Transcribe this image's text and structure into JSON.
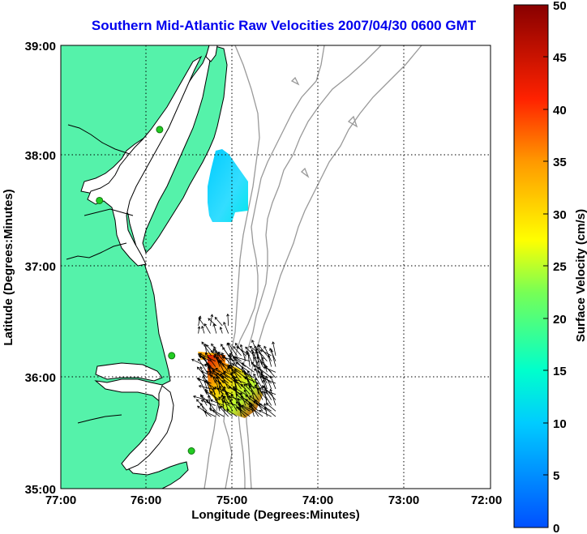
{
  "title": "Southern Mid-Atlantic Raw Velocities 2007/04/30 0600 GMT",
  "x_axis": {
    "label": "Longitude (Degrees:Minutes)",
    "ticks": [
      "77:00",
      "76:00",
      "75:00",
      "74:00",
      "73:00",
      "72:00"
    ]
  },
  "y_axis": {
    "label": "Latitude (Degrees:Minutes)",
    "ticks": [
      "39:00",
      "38:00",
      "37:00",
      "36:00",
      "35:00"
    ]
  },
  "colorbar": {
    "label": "Surface Velocity (cm/s)",
    "ticks": [
      "50",
      "45",
      "40",
      "35",
      "30",
      "25",
      "20",
      "15",
      "10",
      "5",
      "0"
    ],
    "min": 0,
    "max": 50
  },
  "colors": {
    "land": "#55f2aa",
    "coast": "#000000",
    "bathymetry": "#999999",
    "grid": "#000000",
    "title": "#0000ee",
    "station_marker": "#22cc22"
  },
  "map_extent": {
    "lon_min": -77.0,
    "lon_max": -72.0,
    "lat_min": 35.0,
    "lat_max": 39.0
  },
  "grid": "dotted",
  "radar_stations": [
    {
      "name": "north-site",
      "lon": -75.85,
      "lat": 38.24
    },
    {
      "name": "central-site",
      "lon": -76.55,
      "lat": 37.6
    },
    {
      "name": "south-site",
      "lon": -75.71,
      "lat": 36.2
    },
    {
      "name": "hatteras-site",
      "lon": -75.48,
      "lat": 35.34
    }
  ],
  "velocity_patches": [
    {
      "name": "north-patch",
      "lon_range": [
        -75.3,
        -74.8
      ],
      "lat_range": [
        37.4,
        38.05
      ],
      "speed_cms": 10
    },
    {
      "name": "mid-patch",
      "lon_range": [
        -75.4,
        -75.05
      ],
      "lat_range": [
        36.4,
        36.47
      ],
      "speed_cms": 33
    },
    {
      "name": "south-patch",
      "lon_range": [
        -75.3,
        -74.5
      ],
      "lat_range": [
        35.65,
        36.2
      ],
      "speed_cms": 30
    }
  ]
}
